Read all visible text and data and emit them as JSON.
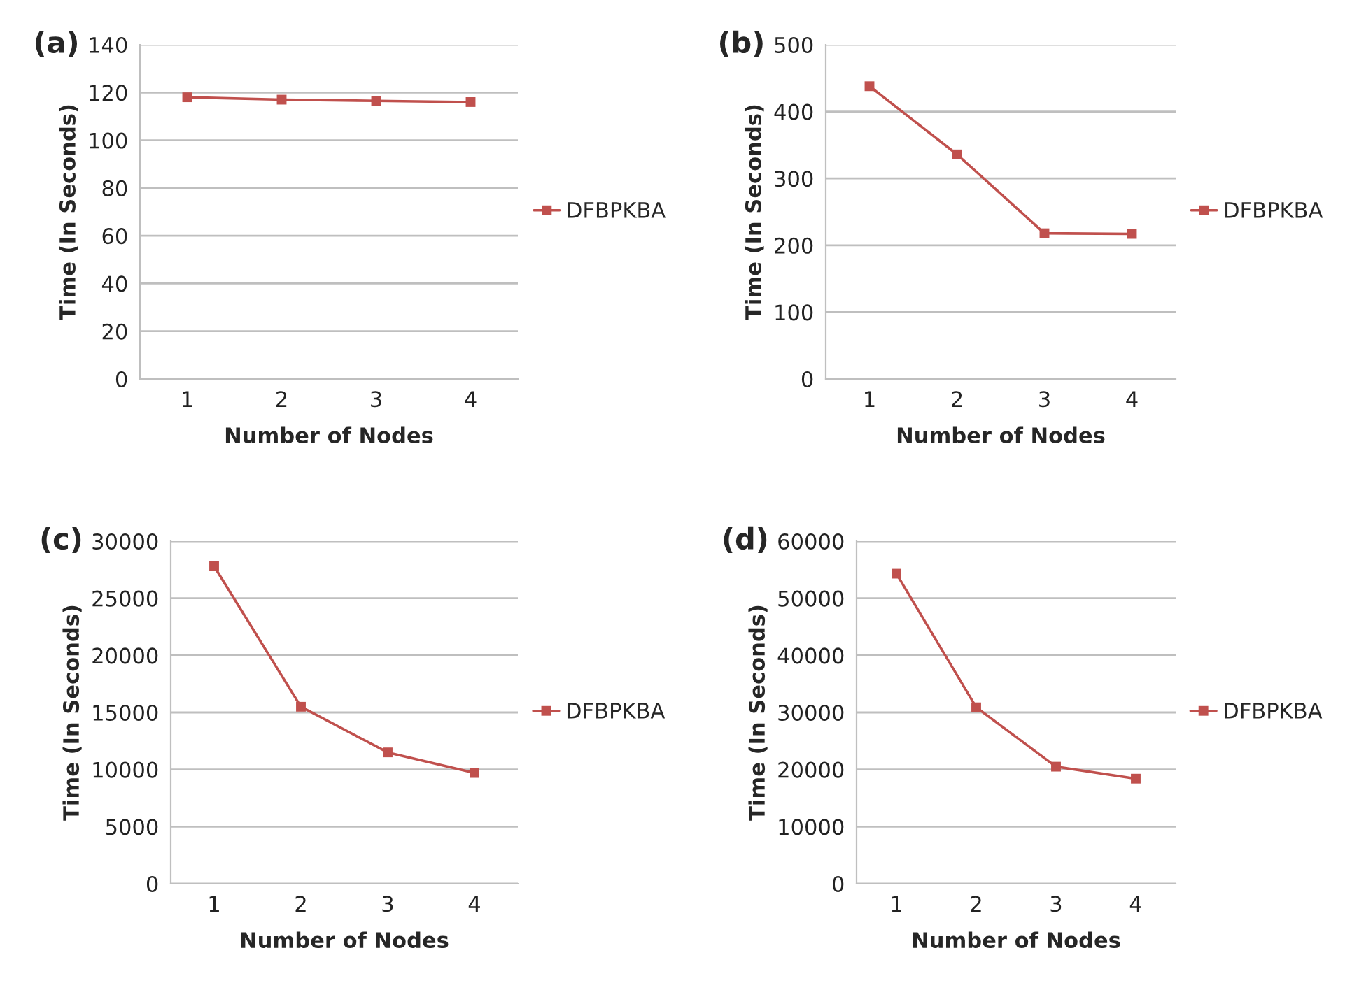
{
  "chart_data": [
    {
      "type": "line",
      "title": "(a)",
      "xlabel": "Number of Nodes",
      "ylabel": "Time (In Seconds)",
      "categories": [
        "1",
        "2",
        "3",
        "4"
      ],
      "ylim": [
        0,
        140
      ],
      "yticks": [
        0,
        20,
        40,
        60,
        80,
        100,
        120,
        140
      ],
      "grid": "y",
      "legend": "right",
      "marker": "square",
      "line_style": "solid",
      "series": [
        {
          "name": "DFBPKBA",
          "color": "#c0504d",
          "values": [
            118,
            117,
            116.5,
            116
          ]
        }
      ]
    },
    {
      "type": "line",
      "title": "(b)",
      "xlabel": "Number of Nodes",
      "ylabel": "Time (In Seconds)",
      "categories": [
        "1",
        "2",
        "3",
        "4"
      ],
      "ylim": [
        0,
        500
      ],
      "yticks": [
        0,
        100,
        200,
        300,
        400,
        500
      ],
      "grid": "y",
      "legend": "right",
      "marker": "square",
      "line_style": "solid",
      "series": [
        {
          "name": "DFBPKBA",
          "color": "#c0504d",
          "values": [
            438,
            336,
            218,
            217
          ]
        }
      ]
    },
    {
      "type": "line",
      "title": "(c)",
      "xlabel": "Number of Nodes",
      "ylabel": "Time (In Seconds)",
      "categories": [
        "1",
        "2",
        "3",
        "4"
      ],
      "ylim": [
        0,
        30000
      ],
      "yticks": [
        0,
        5000,
        10000,
        15000,
        20000,
        25000,
        30000
      ],
      "grid": "y",
      "legend": "right",
      "marker": "square",
      "line_style": "solid",
      "series": [
        {
          "name": "DFBPKBA",
          "color": "#c0504d",
          "values": [
            27800,
            15500,
            11500,
            9700
          ]
        }
      ]
    },
    {
      "type": "line",
      "title": "(d)",
      "xlabel": "Number of Nodes",
      "ylabel": "Time (In Seconds)",
      "categories": [
        "1",
        "2",
        "3",
        "4"
      ],
      "ylim": [
        0,
        60000
      ],
      "yticks": [
        0,
        10000,
        20000,
        30000,
        40000,
        50000,
        60000
      ],
      "grid": "y",
      "legend": "right",
      "marker": "square",
      "line_style": "solid",
      "series": [
        {
          "name": "DFBPKBA",
          "color": "#c0504d",
          "values": [
            54300,
            30900,
            20500,
            18400
          ]
        }
      ]
    }
  ]
}
